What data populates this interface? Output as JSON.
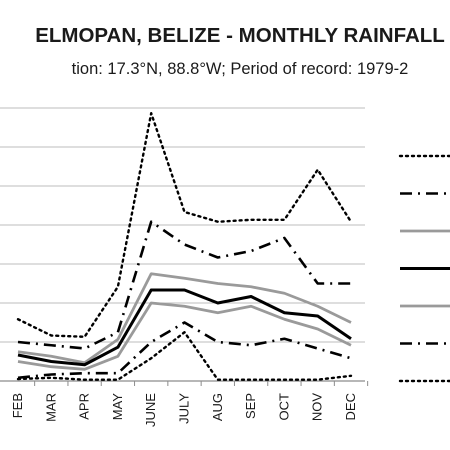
{
  "chart_data": {
    "type": "line",
    "title": "ELMOPAN, BELIZE - MONTHLY RAINFALL",
    "subtitle": "tion: 17.3°N, 88.8°W; Period of record: 1979-2",
    "categories": [
      "FEB",
      "MAR",
      "APR",
      "MAY",
      "JUNE",
      "JULY",
      "AUG",
      "SEP",
      "OCT",
      "NOV",
      "DEC"
    ],
    "ylim": [
      0,
      420
    ],
    "grid": true,
    "legend_position": "right",
    "series": [
      {
        "style": "dotted",
        "color": "#000000",
        "values": [
          95,
          70,
          68,
          145,
          412,
          260,
          245,
          248,
          248,
          325,
          245
        ]
      },
      {
        "style": "dashdot",
        "color": "#000000",
        "values": [
          60,
          55,
          50,
          75,
          245,
          210,
          190,
          200,
          220,
          150,
          150
        ]
      },
      {
        "style": "solid-gray",
        "color": "#999999",
        "values": [
          45,
          38,
          28,
          64,
          165,
          158,
          150,
          145,
          135,
          115,
          90
        ]
      },
      {
        "style": "solid-black",
        "color": "#000000",
        "values": [
          40,
          30,
          25,
          52,
          140,
          140,
          120,
          130,
          105,
          100,
          65
        ]
      },
      {
        "style": "solid-gray",
        "color": "#999999",
        "values": [
          30,
          22,
          18,
          38,
          120,
          115,
          105,
          115,
          95,
          80,
          55
        ]
      },
      {
        "style": "dashdot",
        "color": "#000000",
        "values": [
          5,
          10,
          12,
          12,
          60,
          90,
          60,
          55,
          65,
          50,
          35
        ]
      },
      {
        "style": "dotted",
        "color": "#000000",
        "values": [
          3,
          5,
          2,
          2,
          35,
          75,
          2,
          2,
          2,
          2,
          8
        ]
      }
    ]
  }
}
